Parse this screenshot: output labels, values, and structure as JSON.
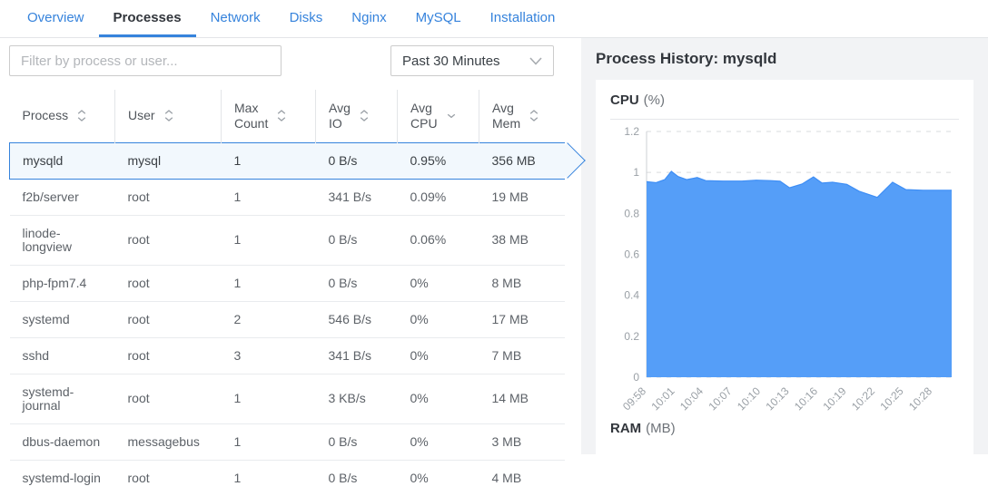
{
  "tabs": {
    "items": [
      {
        "label": "Overview",
        "active": false
      },
      {
        "label": "Processes",
        "active": true
      },
      {
        "label": "Network",
        "active": false
      },
      {
        "label": "Disks",
        "active": false
      },
      {
        "label": "Nginx",
        "active": false
      },
      {
        "label": "MySQL",
        "active": false
      },
      {
        "label": "Installation",
        "active": false
      }
    ]
  },
  "toolbar": {
    "filter_placeholder": "Filter by process or user...",
    "time_range_value": "Past 30 Minutes"
  },
  "table": {
    "columns": [
      {
        "label": "Process",
        "sort": "both"
      },
      {
        "label": "User",
        "sort": "both"
      },
      {
        "label": "Max Count",
        "sort": "both"
      },
      {
        "label": "Avg IO",
        "sort": "both"
      },
      {
        "label": "Avg CPU",
        "sort": "desc"
      },
      {
        "label": "Avg Mem",
        "sort": "both"
      }
    ],
    "rows": [
      {
        "process": "mysqld",
        "user": "mysql",
        "max_count": "1",
        "avg_io": "0 B/s",
        "avg_cpu": "0.95%",
        "avg_mem": "356 MB",
        "selected": true
      },
      {
        "process": "f2b/server",
        "user": "root",
        "max_count": "1",
        "avg_io": "341 B/s",
        "avg_cpu": "0.09%",
        "avg_mem": "19 MB",
        "selected": false
      },
      {
        "process": "linode-longview",
        "user": "root",
        "max_count": "1",
        "avg_io": "0 B/s",
        "avg_cpu": "0.06%",
        "avg_mem": "38 MB",
        "selected": false
      },
      {
        "process": "php-fpm7.4",
        "user": "root",
        "max_count": "1",
        "avg_io": "0 B/s",
        "avg_cpu": "0%",
        "avg_mem": "8 MB",
        "selected": false
      },
      {
        "process": "systemd",
        "user": "root",
        "max_count": "2",
        "avg_io": "546 B/s",
        "avg_cpu": "0%",
        "avg_mem": "17 MB",
        "selected": false
      },
      {
        "process": "sshd",
        "user": "root",
        "max_count": "3",
        "avg_io": "341 B/s",
        "avg_cpu": "0%",
        "avg_mem": "7 MB",
        "selected": false
      },
      {
        "process": "systemd-journal",
        "user": "root",
        "max_count": "1",
        "avg_io": "3 KB/s",
        "avg_cpu": "0%",
        "avg_mem": "14 MB",
        "selected": false
      },
      {
        "process": "dbus-daemon",
        "user": "messagebus",
        "max_count": "1",
        "avg_io": "0 B/s",
        "avg_cpu": "0%",
        "avg_mem": "3 MB",
        "selected": false
      },
      {
        "process": "systemd-login",
        "user": "root",
        "max_count": "1",
        "avg_io": "0 B/s",
        "avg_cpu": "0%",
        "avg_mem": "4 MB",
        "selected": false
      }
    ]
  },
  "detail": {
    "title": "Process History: mysqld",
    "cpu_section": {
      "name": "CPU",
      "unit": "(%)"
    },
    "ram_section": {
      "name": "RAM",
      "unit": "(MB)"
    }
  },
  "chart_data": {
    "type": "area",
    "title": "CPU",
    "ylabel": "%",
    "ylim": [
      0,
      1.2
    ],
    "y_ticks": [
      0,
      0.2,
      0.4,
      0.6,
      0.8,
      1,
      1.2
    ],
    "x_range_minutes": [
      0,
      32
    ],
    "x_labels": [
      "09:58",
      "10:01",
      "10:04",
      "10:07",
      "10:10",
      "10:13",
      "10:16",
      "10:19",
      "10:22",
      "10:25",
      "10:28"
    ],
    "x_label_minutes": [
      0,
      3,
      6,
      9,
      12,
      15,
      18,
      21,
      24,
      27,
      30
    ],
    "points": [
      [
        0,
        0.955
      ],
      [
        1,
        0.95
      ],
      [
        1.9,
        0.965
      ],
      [
        2.6,
        1.005
      ],
      [
        3.3,
        0.98
      ],
      [
        4.2,
        0.965
      ],
      [
        5.3,
        0.975
      ],
      [
        6.2,
        0.96
      ],
      [
        8,
        0.958
      ],
      [
        10,
        0.958
      ],
      [
        11.5,
        0.962
      ],
      [
        13,
        0.96
      ],
      [
        14,
        0.957
      ],
      [
        15,
        0.925
      ],
      [
        16.3,
        0.943
      ],
      [
        17.5,
        0.978
      ],
      [
        18.4,
        0.948
      ],
      [
        19.5,
        0.952
      ],
      [
        21,
        0.942
      ],
      [
        22.3,
        0.908
      ],
      [
        24.2,
        0.878
      ],
      [
        25.8,
        0.952
      ],
      [
        27.2,
        0.916
      ],
      [
        29,
        0.913
      ],
      [
        32,
        0.913
      ]
    ],
    "grid": "dashed-horizontal",
    "legend": "none"
  },
  "colors": {
    "accent_blue": "#3683dc",
    "chart_fill": "#559ef8",
    "chart_stroke": "#3e8ef5",
    "selected_row_bg": "#f2f8fd",
    "panel_bg": "#f2f3f5",
    "grid_line": "#d9dbde",
    "tick_text": "#9aa0a6"
  }
}
